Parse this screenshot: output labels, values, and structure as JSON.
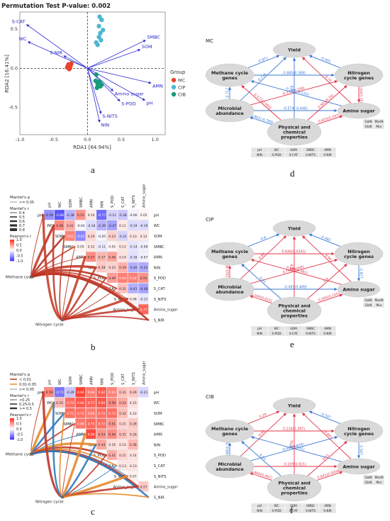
{
  "figure": {
    "panel_labels": [
      "a",
      "b",
      "c",
      "d",
      "e",
      "f"
    ]
  },
  "rda": {
    "title": "Permutation Test P-value: 0.002",
    "xlabel": "RDA1 [64.94%]",
    "ylabel": "RDA2 [16.41%]",
    "legend_title": "Group",
    "groups": [
      "MC",
      "CIP",
      "CIB"
    ],
    "group_colors": [
      "#e8442c",
      "#4bb8d0",
      "#169a7a"
    ],
    "xticks": [
      "-1.0",
      "-0.5",
      "0.0",
      "0.5",
      "1.0"
    ],
    "yticks": [
      "0.5",
      "0.0",
      "-0.5"
    ]
  },
  "chart_data": [
    {
      "type": "scatter",
      "title": "Permutation Test P-value: 0.002",
      "xlabel": "RDA1 [64.94%]",
      "ylabel": "RDA2 [16.41%]",
      "xlim": [
        -1.0,
        1.15
      ],
      "ylim": [
        -0.85,
        0.72
      ],
      "series": [
        {
          "name": "MC",
          "points": [
            [
              -0.3,
              0.01
            ],
            [
              -0.28,
              0.05
            ],
            [
              -0.25,
              0.03
            ],
            [
              -0.27,
              -0.01
            ],
            [
              -0.24,
              0.06
            ],
            [
              -0.29,
              0.03
            ],
            [
              -0.26,
              0.0
            ]
          ]
        },
        {
          "name": "CIP",
          "points": [
            [
              0.18,
              0.66
            ],
            [
              0.21,
              0.62
            ],
            [
              0.17,
              0.54
            ],
            [
              0.19,
              0.45
            ],
            [
              0.23,
              0.49
            ],
            [
              0.13,
              0.33
            ],
            [
              0.15,
              0.3
            ],
            [
              0.2,
              0.36
            ],
            [
              0.17,
              0.4
            ]
          ]
        },
        {
          "name": "CIB",
          "points": [
            [
              0.12,
              -0.16
            ],
            [
              0.15,
              -0.2
            ],
            [
              0.18,
              -0.17
            ],
            [
              0.14,
              -0.25
            ],
            [
              0.19,
              -0.23
            ],
            [
              0.21,
              -0.21
            ],
            [
              0.13,
              -0.08
            ]
          ]
        }
      ],
      "vectors": [
        {
          "label": "S-CAT",
          "x": -0.9,
          "y": 0.56
        },
        {
          "label": "WC",
          "x": -0.88,
          "y": 0.34
        },
        {
          "label": "S-NIR",
          "x": -0.35,
          "y": 0.16
        },
        {
          "label": "SMBC",
          "x": 0.86,
          "y": 0.36
        },
        {
          "label": "SOM",
          "x": 0.78,
          "y": 0.24
        },
        {
          "label": "AMN",
          "x": 0.94,
          "y": -0.19
        },
        {
          "label": "Amino sugar",
          "x": 0.38,
          "y": -0.29
        },
        {
          "label": "pH",
          "x": 0.85,
          "y": -0.41
        },
        {
          "label": "S-POD",
          "x": 0.48,
          "y": -0.42
        },
        {
          "label": "S-NITS",
          "x": 0.2,
          "y": -0.58
        },
        {
          "label": "NIN",
          "x": 0.18,
          "y": -0.69
        }
      ]
    },
    {
      "type": "heatmap",
      "title": "b",
      "variables": [
        "pH",
        "WC",
        "SOM",
        "SMBC",
        "AMN",
        "NIN",
        "S_POD",
        "S_CAT",
        "S_NITS",
        "Amino_sugar",
        "S_NIR"
      ],
      "values_text": [
        [
          "-0.56",
          "-0.88",
          "-0.38",
          "0.52",
          "0.10",
          "-0.77",
          "-0.22",
          "-0.28",
          "-0.06",
          "0.05"
        ],
        [
          "0.58",
          "0.41",
          "-0.04",
          "-0.18",
          "-0.39",
          "-0.47",
          "0.11",
          "-0.19",
          "-0.19"
        ],
        [
          "0.62",
          "-0.61",
          "0.19",
          "-0.05",
          "0.23",
          "-0.22",
          "0.13",
          "0.12"
        ],
        [
          "0.05",
          "0.12",
          "-0.11",
          "0.05",
          "0.12",
          "-0.14",
          "-0.08"
        ],
        [
          "0.57",
          "0.37",
          "0.46",
          "0.14",
          "-0.16",
          "-0.07"
        ],
        [
          "0.28",
          "0.23",
          "0.39",
          "-0.40",
          "-0.43"
        ],
        [
          "0.49",
          "0.64",
          "0.64",
          "0.54"
        ],
        [
          "0.31",
          "-0.41",
          "-0.48"
        ],
        [
          "0.08",
          "-0.12"
        ],
        [
          "0.77"
        ]
      ],
      "legend": {
        "mantel_p_title": "Mantel's p",
        "mantel_p_items": [
          ">= 0.05"
        ],
        "mantel_r_title": "Mantel's r",
        "mantel_r_items": [
          "0.4",
          "0.5",
          "0.6",
          "0.7",
          "0.8"
        ],
        "pearson_title": "Pearson's r",
        "pearson_ticks": [
          "1.0",
          "0.5",
          "0.0",
          "-0.5",
          "-1.0"
        ]
      },
      "nodes": [
        "Methane cycle",
        "Nitrogen cycle"
      ]
    },
    {
      "type": "heatmap",
      "title": "c",
      "variables": [
        "pH",
        "WC",
        "SOM",
        "SMBC",
        "AMN",
        "NIN",
        "S_POD",
        "S_CAT",
        "S_NITS",
        "Amino_sugar",
        "S_NIR"
      ],
      "values_text": [
        [
          "0.59",
          "-0.71",
          "-0.29",
          "0.94",
          "0.66",
          "0.82",
          "0.63",
          "0.31",
          "0.29",
          "-0.21"
        ],
        [
          "0.35",
          "0.73",
          "0.84",
          "0.77",
          "0.84",
          "0.59",
          "0.43",
          "0.15"
        ],
        [
          "0.72",
          "0.72",
          "0.66",
          "0.72",
          "0.73",
          "0.32",
          "0.10"
        ],
        [
          "0.68",
          "0.75",
          "0.72",
          "0.51",
          "0.21",
          "0.28"
        ],
        [
          "0.90",
          "0.53",
          "0.56",
          "0.31",
          "0.26"
        ],
        [
          "0.44",
          "0.16",
          "0.14",
          "0.36"
        ],
        [
          "0.41",
          "0.21",
          "0.14"
        ],
        [
          "0.13",
          "0.13"
        ],
        [
          "0.07"
        ],
        [
          "0.27"
        ]
      ],
      "legend": {
        "mantel_p_title": "Mantel's p",
        "mantel_p_items": [
          "< 0.01",
          "0.01-0.05",
          ">= 0.05"
        ],
        "mantel_r_title": "Mantel's r",
        "mantel_r_items": [
          "<0.25",
          "0.25-0.5",
          ">= 0.5"
        ],
        "pearson_title": "Pearson's r",
        "pearson_ticks": [
          "1.0",
          "0.5",
          "0.0",
          "-0.5",
          "-1.0"
        ]
      },
      "nodes": [
        "Methane cycle",
        "Nitrogen cycle"
      ]
    }
  ],
  "sem": {
    "nodes": {
      "yield": "Yield",
      "methane": "Methane cycle genes",
      "nitrogen": "Nitrogen cycle genes",
      "microbial": "Microbial abundance",
      "amino": "Amino sugar",
      "physchem": "Physical and chemical properties"
    },
    "physchem_table": [
      [
        "pH",
        "WC",
        "SOM",
        "SMBC",
        "AMN"
      ],
      [
        "NIN",
        "S-POD",
        "S-CAT",
        "S-NITS",
        "S-NIR"
      ]
    ],
    "amino_table": [
      [
        "GalN",
        "ManN"
      ],
      [
        "GlcN",
        "Mur"
      ]
    ],
    "panels": [
      {
        "name": "MC",
        "edges": [
          {
            "from": "methane",
            "to": "yield",
            "label": "-0.871",
            "color": "#3a78d6"
          },
          {
            "from": "nitrogen",
            "to": "yield",
            "label": "-0.491",
            "color": "#3a78d6"
          },
          {
            "from": "methane",
            "to": "nitrogen",
            "label": "-0.885(0.368)",
            "color": "#3a78d6"
          },
          {
            "from": "microbial",
            "to": "yield",
            "label": "-0.715",
            "color": "#3a78d6"
          },
          {
            "from": "amino",
            "to": "yield",
            "label": "0.74",
            "color": "#e2344a"
          },
          {
            "from": "microbial",
            "to": "nitrogen",
            "label": "-0.274(0.258)",
            "color": "#e2344a"
          },
          {
            "from": "microbial",
            "to": "methane",
            "label": "-0.717",
            "color": "#3a78d6"
          },
          {
            "from": "amino",
            "to": "methane",
            "label": "-0.711(-0.133)",
            "color": "#3a78d6"
          },
          {
            "from": "microbial",
            "to": "amino",
            "label": "-0.574(-0.448)",
            "color": "#3a78d6"
          },
          {
            "from": "nitrogen",
            "to": "amino",
            "label": "0.64(0.15)",
            "color": "#e2344a"
          },
          {
            "from": "physchem",
            "to": "yield",
            "label": "0.8",
            "color": "#3a78d6"
          },
          {
            "from": "physchem",
            "to": "microbial",
            "label": "-0.861(-0.789)",
            "color": "#3a78d6"
          },
          {
            "from": "physchem",
            "to": "amino",
            "label": "0.603(0.197)",
            "color": "#e2344a"
          },
          {
            "from": "physchem",
            "to": "methane",
            "label": "0.577(0.493)",
            "color": "#e2344a"
          },
          {
            "from": "physchem",
            "to": "nitrogen",
            "label": "0.803(0.24)",
            "color": "#e2344a"
          }
        ]
      },
      {
        "name": "CIP",
        "edges": [
          {
            "from": "methane",
            "to": "yield",
            "label": "-0.6",
            "color": "#3a78d6"
          },
          {
            "from": "nitrogen",
            "to": "yield",
            "label": "-0.482",
            "color": "#3a78d6"
          },
          {
            "from": "methane",
            "to": "nitrogen",
            "label": "0.644(0.0341)",
            "color": "#e2344a"
          },
          {
            "from": "microbial",
            "to": "yield",
            "label": "0.89",
            "color": "#e2344a"
          },
          {
            "from": "amino",
            "to": "yield",
            "label": "0.94",
            "color": "#e2344a"
          },
          {
            "from": "microbial",
            "to": "nitrogen",
            "label": "0.799(0.058)",
            "color": "#e2344a"
          },
          {
            "from": "microbial",
            "to": "methane",
            "label": "0.510(0.902)",
            "color": "#e2344a"
          },
          {
            "from": "amino",
            "to": "methane",
            "label": "0.692(0.381)",
            "color": "#e2344a"
          },
          {
            "from": "microbial",
            "to": "amino",
            "label": "-0.491(0.489)",
            "color": "#3a78d6"
          },
          {
            "from": "nitrogen",
            "to": "amino",
            "label": "-0.827",
            "color": "#3a78d6"
          },
          {
            "from": "physchem",
            "to": "yield",
            "label": "0.9",
            "color": "#e2344a"
          },
          {
            "from": "physchem",
            "to": "microbial",
            "label": "0.164(0.615)",
            "color": "#e2344a"
          },
          {
            "from": "physchem",
            "to": "amino",
            "label": "0.595(0.145)",
            "color": "#e2344a"
          },
          {
            "from": "physchem",
            "to": "methane",
            "label": "0.41",
            "color": "#3a78d6"
          },
          {
            "from": "physchem",
            "to": "nitrogen",
            "label": "0.6",
            "color": "#e2344a"
          }
        ]
      },
      {
        "name": "CIB",
        "edges": [
          {
            "from": "methane",
            "to": "yield",
            "label": "0.29",
            "color": "#e2344a"
          },
          {
            "from": "nitrogen",
            "to": "yield",
            "label": "-0.597",
            "color": "#3a78d6"
          },
          {
            "from": "methane",
            "to": "nitrogen",
            "label": "0.216(0.397)",
            "color": "#e2344a"
          },
          {
            "from": "microbial",
            "to": "yield",
            "label": "0.92",
            "color": "#e2344a"
          },
          {
            "from": "amino",
            "to": "yield",
            "label": "0.887",
            "color": "#e2344a"
          },
          {
            "from": "microbial",
            "to": "nitrogen",
            "label": "0.448(0.934)",
            "color": "#3a78d6"
          },
          {
            "from": "microbial",
            "to": "methane",
            "label": "-0.598(0.389)",
            "color": "#3a78d6"
          },
          {
            "from": "amino",
            "to": "methane",
            "label": "0.4(0.61)",
            "color": "#3a78d6"
          },
          {
            "from": "microbial",
            "to": "amino",
            "label": "0.209(0.821)",
            "color": "#e2344a"
          },
          {
            "from": "nitrogen",
            "to": "amino",
            "label": "0.567",
            "color": "#3a78d6"
          },
          {
            "from": "physchem",
            "to": "yield",
            "label": "0.76",
            "color": "#e2344a"
          },
          {
            "from": "physchem",
            "to": "microbial",
            "label": "0.860(0.497)",
            "color": "#e2344a"
          },
          {
            "from": "physchem",
            "to": "amino",
            "label": "0.641(0.0008)",
            "color": "#e2344a"
          },
          {
            "from": "physchem",
            "to": "methane",
            "label": "0.83",
            "color": "#3a78d6"
          },
          {
            "from": "physchem",
            "to": "nitrogen",
            "label": "0.61",
            "color": "#e2344a"
          }
        ]
      }
    ]
  }
}
